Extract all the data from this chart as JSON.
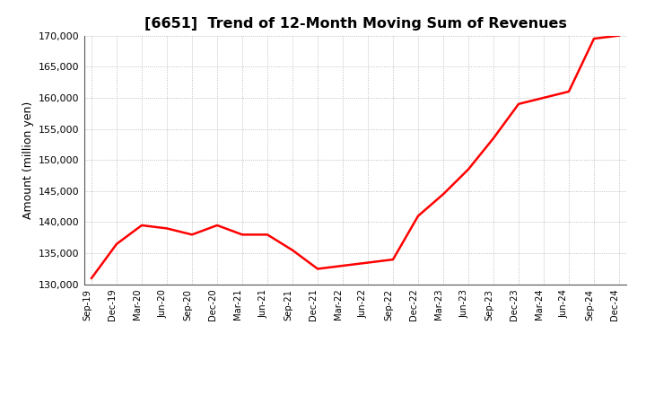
{
  "title": "[6651]  Trend of 12-Month Moving Sum of Revenues",
  "ylabel": "Amount (million yen)",
  "line_color": "#ff0000",
  "background_color": "#ffffff",
  "plot_bg_color": "#ffffff",
  "grid_color": "#b0b0b0",
  "ylim": [
    130000,
    170000
  ],
  "yticks": [
    130000,
    135000,
    140000,
    145000,
    150000,
    155000,
    160000,
    165000,
    170000
  ],
  "x_labels": [
    "Sep-19",
    "Dec-19",
    "Mar-20",
    "Jun-20",
    "Sep-20",
    "Dec-20",
    "Mar-21",
    "Jun-21",
    "Sep-21",
    "Dec-21",
    "Mar-22",
    "Jun-22",
    "Sep-22",
    "Dec-22",
    "Mar-23",
    "Jun-23",
    "Sep-23",
    "Dec-23",
    "Mar-24",
    "Jun-24",
    "Sep-24",
    "Dec-24"
  ],
  "values": [
    131000,
    136500,
    139500,
    139000,
    138000,
    139500,
    138000,
    138000,
    135500,
    132500,
    133000,
    133500,
    134000,
    141000,
    144500,
    148500,
    153500,
    159000,
    160000,
    161000,
    169500,
    170000
  ]
}
